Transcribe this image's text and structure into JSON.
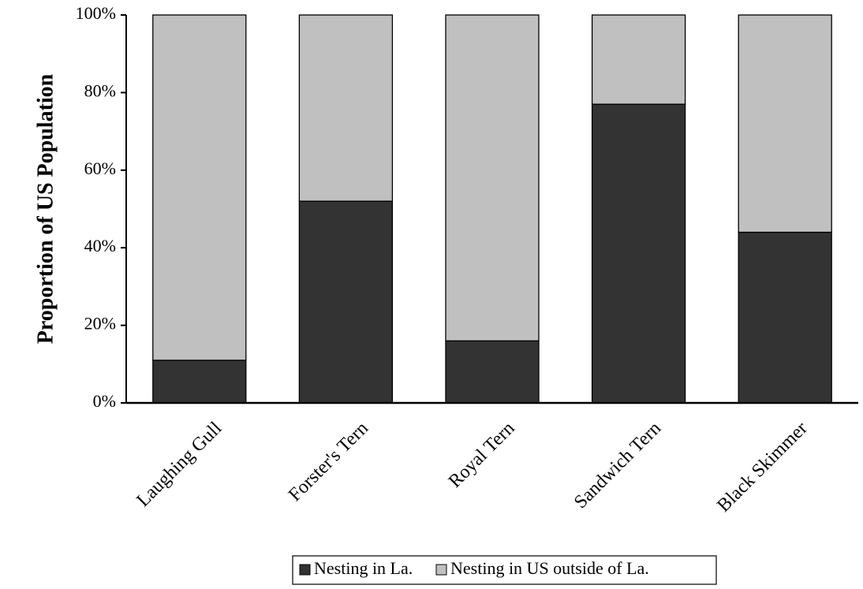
{
  "chart_data": {
    "type": "bar",
    "stacked": true,
    "percent_stacked": true,
    "categories": [
      "Laughing Gull",
      "Forster's Tern",
      "Royal Tern",
      "Sandwich Tern",
      "Black Skimmer"
    ],
    "series": [
      {
        "name": "Nesting in La.",
        "values": [
          11,
          52,
          16,
          77,
          44
        ],
        "color": "#333333"
      },
      {
        "name": "Nesting in US outside of La.",
        "values": [
          89,
          48,
          84,
          23,
          56
        ],
        "color": "#c0c0c0"
      }
    ],
    "title": "",
    "xlabel": "",
    "ylabel": "Proportion of US Population",
    "ylim": [
      0,
      100
    ],
    "yticks": [
      "0%",
      "20%",
      "40%",
      "60%",
      "80%",
      "100%"
    ],
    "grid": false,
    "legend_position": "bottom"
  }
}
